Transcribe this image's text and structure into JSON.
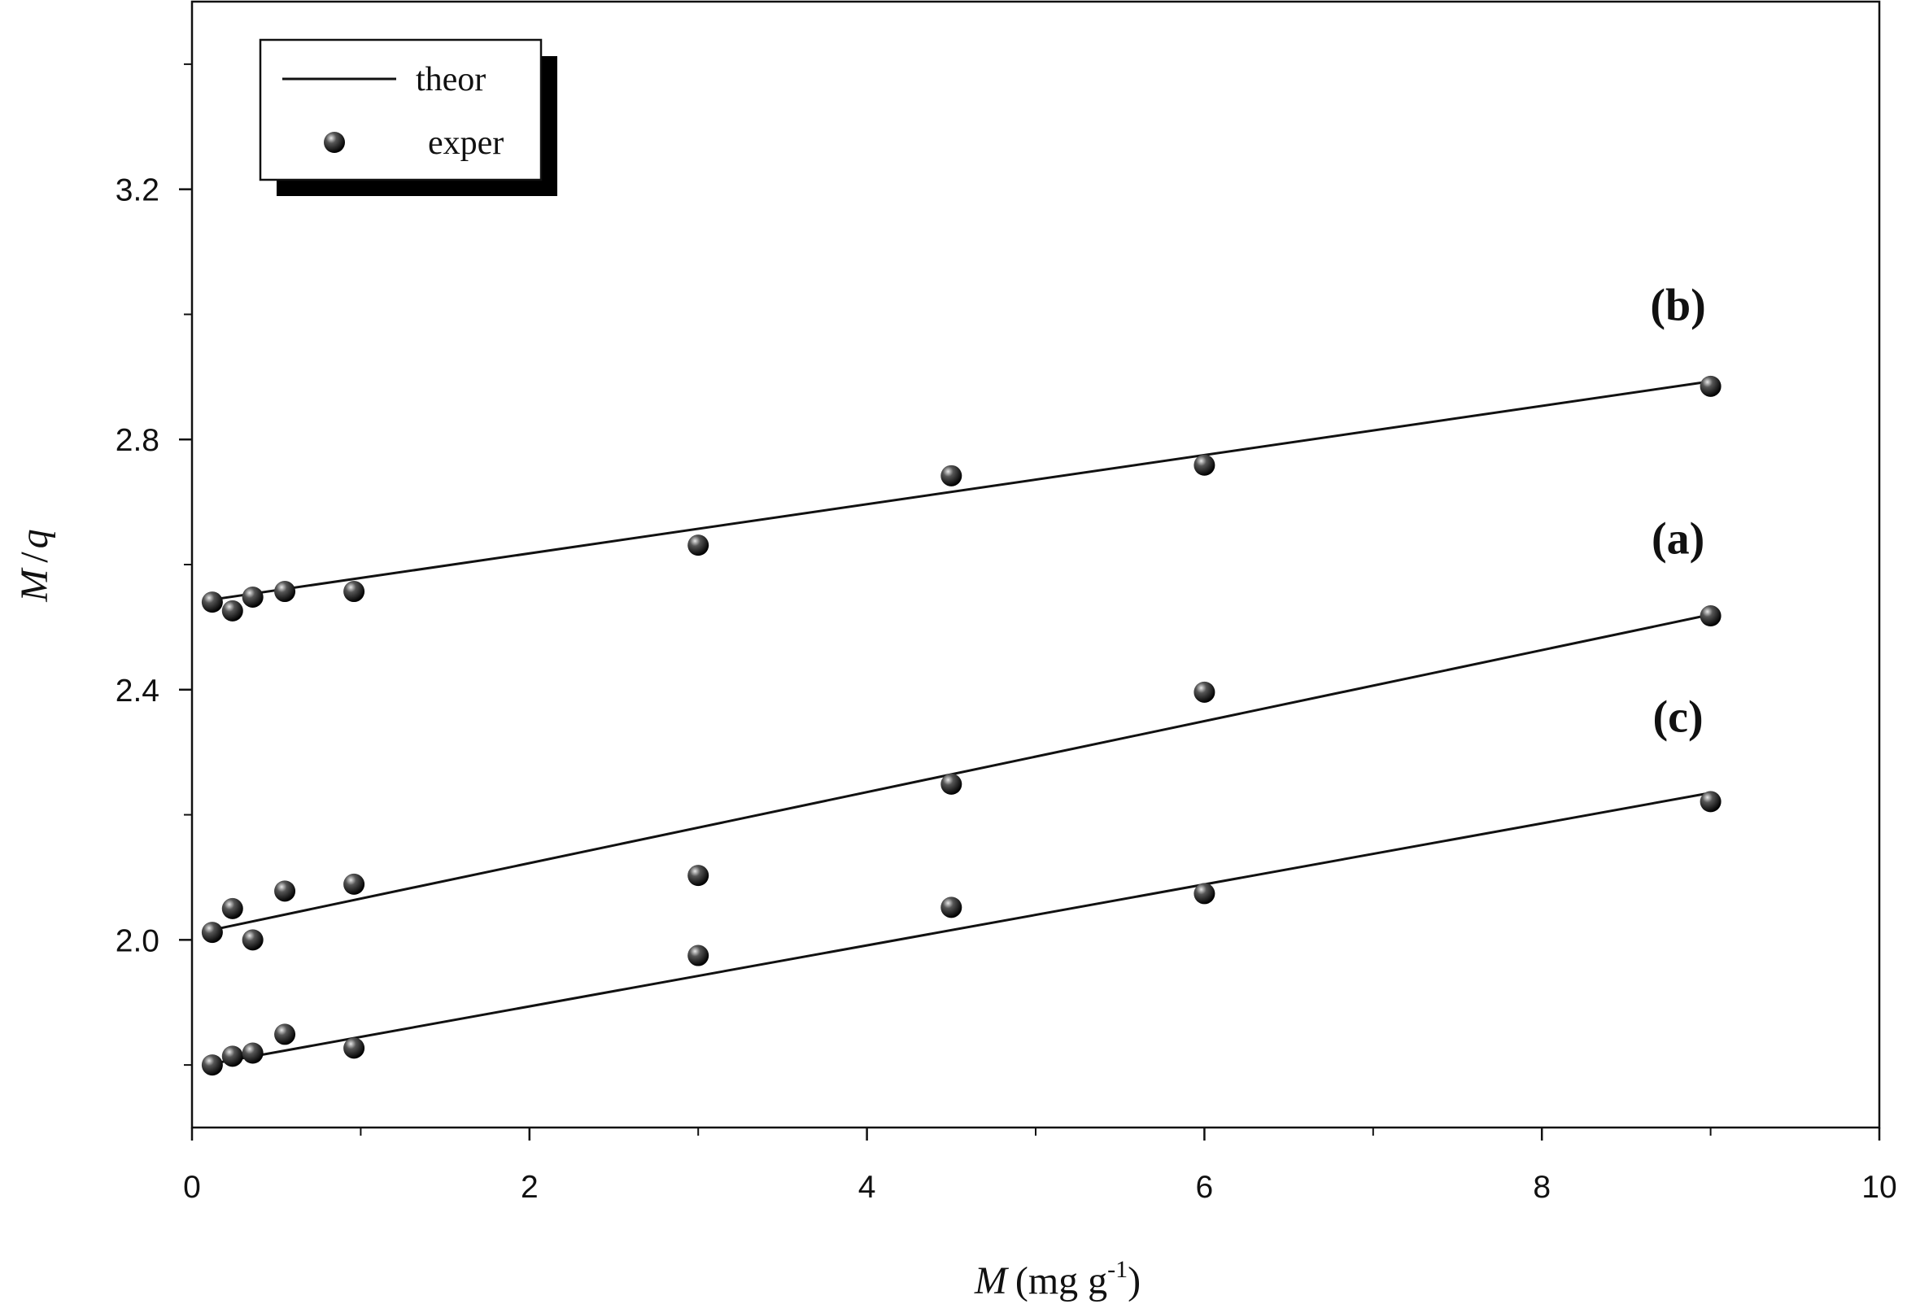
{
  "chart_data": {
    "type": "scatter",
    "x_label": {
      "symbol": "M",
      "unit_open": "(mg g",
      "exponent": "-1",
      "unit_close": ")"
    },
    "y_label": {
      "numerator": "M",
      "slash": "/",
      "denominator": "q"
    },
    "legend": {
      "line": "theor",
      "marker": "exper"
    },
    "x": [
      0.12,
      0.24,
      0.36,
      0.55,
      0.96,
      3,
      4.5,
      6,
      9
    ],
    "fit_x": [
      0.12,
      9
    ],
    "series": [
      {
        "name": "(a)",
        "values": [
          2.012,
          2.05,
          2.0,
          2.078,
          2.089,
          2.103,
          2.249,
          2.396,
          2.518
        ],
        "fit": [
          2.016,
          2.52
        ]
      },
      {
        "name": "(b)",
        "values": [
          2.54,
          2.526,
          2.548,
          2.557,
          2.557,
          2.631,
          2.742,
          2.759,
          2.885
        ],
        "fit": [
          2.544,
          2.893
        ]
      },
      {
        "name": "(c)",
        "values": [
          1.8,
          1.814,
          1.819,
          1.849,
          1.827,
          1.975,
          2.052,
          2.074,
          2.221
        ],
        "fit": [
          1.802,
          2.235
        ]
      }
    ],
    "color": "#111111",
    "xlim": [
      0,
      10
    ],
    "ylim": [
      1.7,
      3.5
    ],
    "xticks": [
      0,
      2,
      4,
      6,
      8,
      10
    ],
    "yticks": [
      {
        "value": 2,
        "label": "2.0"
      },
      {
        "value": 2.4,
        "label": "2.4"
      },
      {
        "value": 2.8,
        "label": "2.8"
      },
      {
        "value": 3.2,
        "label": "3.2"
      }
    ]
  }
}
